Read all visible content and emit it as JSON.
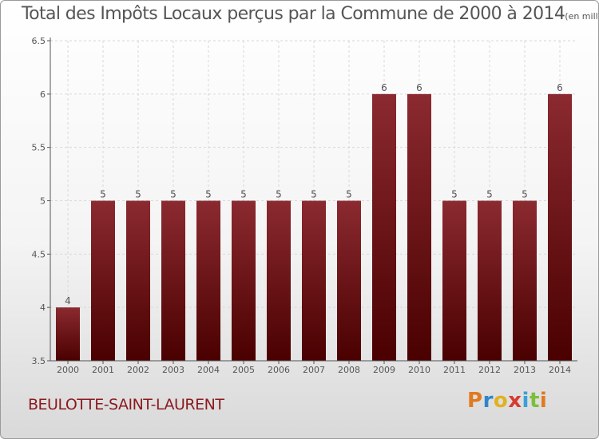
{
  "chart_data": {
    "type": "bar",
    "title": "Total des Impôts Locaux perçus par la Commune de 2000 à 2014",
    "unit_label": "(en milliers d'€)",
    "categories": [
      "2000",
      "2001",
      "2002",
      "2003",
      "2004",
      "2005",
      "2006",
      "2007",
      "2008",
      "2009",
      "2010",
      "2011",
      "2012",
      "2013",
      "2014"
    ],
    "values": [
      4,
      5,
      5,
      5,
      5,
      5,
      5,
      5,
      5,
      6,
      6,
      5,
      5,
      5,
      6
    ],
    "value_labels": [
      "4",
      "5",
      "5",
      "5",
      "5",
      "5",
      "5",
      "5",
      "5",
      "6",
      "6",
      "5",
      "5",
      "5",
      "6"
    ],
    "ylim": [
      3.5,
      6.5
    ],
    "yticks": [
      "3.5",
      "4",
      "4.5",
      "5",
      "5.5",
      "6",
      "6.5"
    ],
    "xlabel": "",
    "ylabel": "",
    "grid": true,
    "bar_color_top": "#8b2a30",
    "bar_color_bottom": "#4a0000"
  },
  "footer": {
    "commune": "BEULOTTE-SAINT-LAURENT",
    "brand_letters": [
      "P",
      "r",
      "o",
      "x",
      "i",
      "t",
      "i"
    ]
  }
}
